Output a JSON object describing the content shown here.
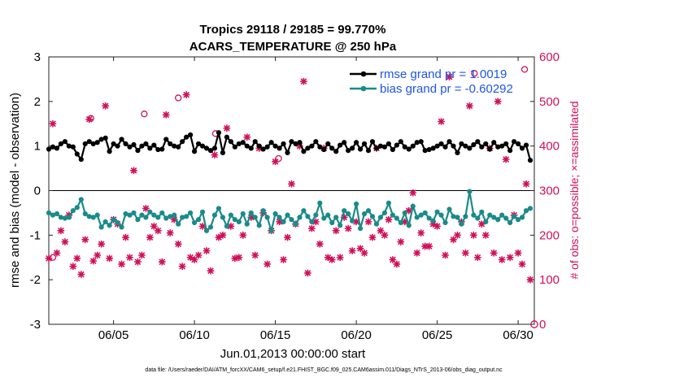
{
  "chart_data": {
    "type": "line",
    "title": "Tropics 29118 / 29185 = 99.770%",
    "subtitle": "ACARS_TEMPERATURE @ 250 hPa",
    "xlabel": "Jun.01,2013 00:00:00 start",
    "ylabel": "rmse and bias (model - observation)",
    "ylabel_right": "# of obs: o=possible; ×=assimilated",
    "xlim": [
      1,
      31
    ],
    "ylim": [
      -3,
      3
    ],
    "ylim_right": [
      0,
      600
    ],
    "x_ticks": [
      5,
      10,
      15,
      20,
      25,
      30
    ],
    "x_tick_labels": [
      "06/05",
      "06/10",
      "06/15",
      "06/20",
      "06/25",
      "06/30"
    ],
    "y_ticks": [
      -3,
      -2,
      -1,
      0,
      1,
      2,
      3
    ],
    "y_tick_labels": [
      "-3",
      "-2",
      "-1",
      "0",
      "1",
      "2",
      "3"
    ],
    "y_right_ticks": [
      0,
      100,
      200,
      300,
      400,
      500,
      600
    ],
    "y_right_tick_labels": [
      "0",
      "100",
      "200",
      "300",
      "400",
      "500",
      "600"
    ],
    "zero_line": 0,
    "legend_location": "top-right",
    "series": [
      {
        "name": "rmse grand pr = 1.0019",
        "color": "#000000",
        "marker": "filled-circle",
        "axis": "left",
        "x": [
          1.0,
          1.25,
          1.5,
          1.75,
          2.0,
          2.25,
          2.5,
          2.75,
          3.0,
          3.25,
          3.5,
          3.75,
          4.0,
          4.25,
          4.5,
          4.75,
          5.0,
          5.25,
          5.5,
          5.75,
          6.0,
          6.25,
          6.5,
          6.75,
          7.0,
          7.25,
          7.5,
          7.75,
          8.0,
          8.25,
          8.5,
          8.75,
          9.0,
          9.25,
          9.5,
          9.75,
          10.0,
          10.25,
          10.5,
          10.75,
          11.0,
          11.25,
          11.5,
          11.75,
          12.0,
          12.25,
          12.5,
          12.75,
          13.0,
          13.25,
          13.5,
          13.75,
          14.0,
          14.25,
          14.5,
          14.75,
          15.0,
          15.25,
          15.5,
          15.75,
          16.0,
          16.25,
          16.5,
          16.75,
          17.0,
          17.25,
          17.5,
          17.75,
          18.0,
          18.25,
          18.5,
          18.75,
          19.0,
          19.25,
          19.5,
          19.75,
          20.0,
          20.25,
          20.5,
          20.75,
          21.0,
          21.25,
          21.5,
          21.75,
          22.0,
          22.25,
          22.5,
          22.75,
          23.0,
          23.25,
          23.5,
          23.75,
          24.0,
          24.25,
          24.5,
          24.75,
          25.0,
          25.25,
          25.5,
          25.75,
          26.0,
          26.25,
          26.5,
          26.75,
          27.0,
          27.25,
          27.5,
          27.75,
          28.0,
          28.25,
          28.5,
          28.75,
          29.0,
          29.25,
          29.5,
          29.75,
          30.0,
          30.25,
          30.5,
          30.75
        ],
        "values": [
          0.93,
          0.98,
          0.95,
          1.05,
          1.1,
          1.0,
          0.98,
          0.82,
          0.7,
          1.05,
          1.1,
          1.05,
          1.08,
          1.15,
          1.18,
          0.88,
          1.05,
          1.0,
          1.15,
          1.05,
          0.98,
          1.03,
          0.9,
          1.0,
          1.05,
          0.95,
          1.02,
          0.92,
          0.93,
          1.15,
          1.05,
          1.0,
          0.98,
          1.1,
          1.2,
          1.25,
          0.88,
          1.05,
          1.0,
          0.95,
          0.9,
          0.95,
          1.3,
          0.85,
          1.2,
          1.1,
          0.98,
          1.05,
          1.08,
          1.0,
          0.95,
          1.1,
          1.0,
          0.93,
          0.98,
          1.08,
          1.0,
          0.95,
          1.05,
          0.85,
          1.1,
          1.05,
          1.08,
          0.88,
          0.95,
          1.0,
          1.1,
          0.98,
          0.92,
          1.05,
          0.95,
          0.88,
          1.02,
          1.08,
          0.9,
          0.95,
          1.08,
          0.93,
          1.05,
          0.9,
          1.1,
          0.95,
          1.0,
          0.98,
          1.05,
          0.92,
          1.02,
          1.1,
          0.98,
          0.93,
          1.0,
          1.08,
          1.1,
          0.9,
          0.92,
          0.95,
          1.0,
          1.05,
          0.98,
          1.1,
          1.0,
          0.85,
          1.05,
          1.0,
          0.95,
          1.03,
          1.1,
          0.98,
          1.05,
          0.93,
          1.08,
          0.98,
          1.0,
          1.05,
          0.9,
          1.1,
          1.05,
          0.95,
          1.02,
          0.68
        ]
      },
      {
        "name": "bias grand pr = -0.60292",
        "color": "#1a8a8a",
        "marker": "filled-circle",
        "axis": "left",
        "x": [
          1.0,
          1.25,
          1.5,
          1.75,
          2.0,
          2.25,
          2.5,
          2.75,
          3.0,
          3.25,
          3.5,
          3.75,
          4.0,
          4.25,
          4.5,
          4.75,
          5.0,
          5.25,
          5.5,
          5.75,
          6.0,
          6.25,
          6.5,
          6.75,
          7.0,
          7.25,
          7.5,
          7.75,
          8.0,
          8.25,
          8.5,
          8.75,
          9.0,
          9.25,
          9.5,
          9.75,
          10.0,
          10.25,
          10.5,
          10.75,
          11.0,
          11.25,
          11.5,
          11.75,
          12.0,
          12.25,
          12.5,
          12.75,
          13.0,
          13.25,
          13.5,
          13.75,
          14.0,
          14.25,
          14.5,
          14.75,
          15.0,
          15.25,
          15.5,
          15.75,
          16.0,
          16.25,
          16.5,
          16.75,
          17.0,
          17.25,
          17.5,
          17.75,
          18.0,
          18.25,
          18.5,
          18.75,
          19.0,
          19.25,
          19.5,
          19.75,
          20.0,
          20.25,
          20.5,
          20.75,
          21.0,
          21.25,
          21.5,
          21.75,
          22.0,
          22.25,
          22.5,
          22.75,
          23.0,
          23.25,
          23.5,
          23.75,
          24.0,
          24.25,
          24.5,
          24.75,
          25.0,
          25.25,
          25.5,
          25.75,
          26.0,
          26.25,
          26.5,
          26.75,
          27.0,
          27.25,
          27.5,
          27.75,
          28.0,
          28.25,
          28.5,
          28.75,
          29.0,
          29.25,
          29.5,
          29.75,
          30.0,
          30.25,
          30.5,
          30.75
        ],
        "values": [
          -0.5,
          -0.55,
          -0.52,
          -0.6,
          -0.62,
          -0.6,
          -0.45,
          -0.38,
          -0.2,
          -0.52,
          -0.58,
          -0.6,
          -0.55,
          -0.82,
          -0.7,
          -0.78,
          -0.65,
          -0.72,
          -0.82,
          -0.52,
          -0.55,
          -0.5,
          -0.65,
          -0.55,
          -0.6,
          -0.48,
          -0.55,
          -0.6,
          -0.5,
          -0.62,
          -0.58,
          -0.55,
          -0.75,
          -0.6,
          -0.58,
          -0.5,
          -0.72,
          -0.65,
          -0.48,
          -0.9,
          -0.82,
          -0.55,
          -0.4,
          -0.6,
          -0.8,
          -0.55,
          -0.65,
          -0.7,
          -0.52,
          -0.75,
          -0.5,
          -0.6,
          -0.78,
          -0.45,
          -0.6,
          -0.9,
          -0.52,
          -0.6,
          -0.7,
          -0.55,
          -0.65,
          -0.75,
          -0.6,
          -0.45,
          -0.58,
          -0.7,
          -0.55,
          -0.28,
          -0.62,
          -0.55,
          -0.72,
          -0.6,
          -0.78,
          -0.45,
          -0.52,
          -0.68,
          -0.3,
          -0.85,
          -0.52,
          -0.45,
          -0.58,
          -0.75,
          -0.6,
          -0.5,
          -0.28,
          -0.55,
          -0.62,
          -0.72,
          -0.5,
          -0.78,
          -0.35,
          -0.6,
          -0.55,
          -0.5,
          -0.62,
          -0.68,
          -0.48,
          -0.55,
          -0.72,
          -0.42,
          -0.58,
          -0.6,
          -0.75,
          -0.58,
          -0.02,
          -0.55,
          -0.62,
          -0.48,
          -0.7,
          -0.55,
          -0.6,
          -0.65,
          -0.55,
          -0.62,
          -0.72,
          -0.58,
          -0.65,
          -0.6,
          -0.45,
          -0.4
        ]
      },
      {
        "name": "obs possible",
        "color": "#d0105a",
        "marker": "open-circle",
        "axis": "right",
        "x": [
          1.25,
          3.6,
          6.9,
          9.0,
          11.3,
          15.2,
          27.3,
          30.4
        ],
        "values": [
          150,
          462,
          472,
          508,
          428,
          372,
          563,
          572
        ]
      },
      {
        "name": "obs assimilated",
        "color": "#d0105a",
        "marker": "cross",
        "axis": "right",
        "x": [
          1.0,
          1.25,
          1.5,
          1.75,
          2.0,
          2.25,
          2.5,
          2.75,
          3.0,
          3.25,
          3.5,
          3.75,
          4.0,
          4.25,
          4.5,
          4.75,
          5.0,
          5.25,
          5.5,
          5.75,
          6.0,
          6.25,
          6.5,
          6.75,
          7.0,
          7.25,
          7.5,
          7.75,
          8.0,
          8.25,
          8.5,
          8.75,
          9.0,
          9.25,
          9.5,
          9.75,
          10.0,
          10.25,
          10.5,
          10.75,
          11.0,
          11.25,
          11.5,
          11.75,
          12.0,
          12.25,
          12.5,
          12.75,
          13.0,
          13.25,
          13.5,
          13.75,
          14.0,
          14.25,
          14.5,
          14.75,
          15.0,
          15.25,
          15.5,
          15.75,
          16.0,
          16.25,
          16.5,
          16.75,
          17.0,
          17.25,
          17.5,
          17.75,
          18.0,
          18.25,
          18.5,
          18.75,
          19.0,
          19.25,
          19.5,
          19.75,
          20.0,
          20.25,
          20.5,
          20.75,
          21.0,
          21.25,
          21.5,
          21.75,
          22.0,
          22.25,
          22.5,
          22.75,
          23.0,
          23.25,
          23.5,
          23.75,
          24.0,
          24.25,
          24.5,
          24.75,
          25.0,
          25.25,
          25.5,
          25.75,
          26.0,
          26.25,
          26.5,
          26.75,
          27.0,
          27.25,
          27.5,
          27.75,
          28.0,
          28.25,
          28.5,
          28.75,
          29.0,
          29.25,
          29.5,
          29.75,
          30.0,
          30.25,
          30.5,
          30.75
        ],
        "values": [
          148,
          450,
          160,
          210,
          185,
          245,
          130,
          148,
          112,
          190,
          460,
          142,
          155,
          180,
          490,
          148,
          235,
          225,
          135,
          195,
          150,
          345,
          140,
          155,
          260,
          195,
          220,
          210,
          140,
          470,
          205,
          235,
          180,
          130,
          515,
          150,
          145,
          155,
          220,
          165,
          120,
          380,
          195,
          200,
          440,
          220,
          148,
          150,
          200,
          420,
          240,
          155,
          395,
          250,
          135,
          210,
          365,
          230,
          145,
          195,
          315,
          225,
          400,
          545,
          115,
          215,
          230,
          180,
          395,
          150,
          145,
          210,
          150,
          240,
          215,
          165,
          230,
          170,
          160,
          230,
          195,
          395,
          210,
          200,
          235,
          145,
          135,
          185,
          230,
          255,
          295,
          160,
          205,
          175,
          175,
          225,
          220,
          455,
          155,
          555,
          190,
          200,
          230,
          160,
          490,
          200,
          150,
          225,
          200,
          395,
          160,
          500,
          145,
          370,
          150,
          245,
          160,
          135,
          315,
          100
        ]
      }
    ],
    "footer": "data file: /Users/raeder/DAI/ATM_forcXX/CAM6_setup/f.e21.FHIST_BGC.f09_025.CAM6assim.011/Diags_NTrS_2013-06/obs_diag_output.nc"
  }
}
